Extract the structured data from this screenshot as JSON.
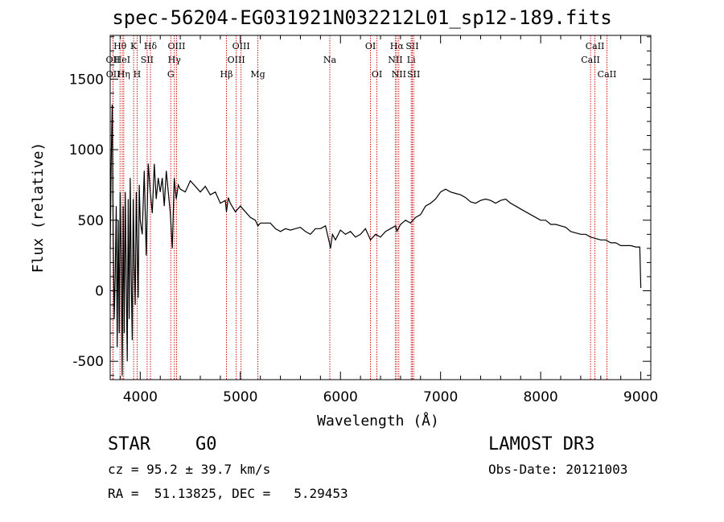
{
  "header": {
    "title": "spec-56204-EG031921N032212L01_sp12-189.fits"
  },
  "footer": {
    "class_label": "STAR",
    "subclass_label": "G0",
    "redshift_label": "cz = 95.2 ± 39.7 km/s",
    "coords_label": "RA =  51.13825, DEC =   5.29453",
    "survey_label": "LAMOST DR3",
    "obsdate_label": "Obs-Date: 20121003"
  },
  "colors": {
    "line_marker": "#cc0000",
    "spectrum": "#000000",
    "axes": "#000000"
  },
  "chart_data": {
    "type": "line",
    "title": "spec-56204-EG031921N032212L01_sp12-189.fits",
    "xlabel": "Wavelength (Å)",
    "ylabel": "Flux (relative)",
    "xlim": [
      3700,
      9100
    ],
    "ylim": [
      -630,
      1810
    ],
    "xticks": [
      4000,
      5000,
      6000,
      7000,
      8000,
      9000
    ],
    "yticks": [
      -500,
      0,
      500,
      1000,
      1500
    ],
    "series": [
      {
        "name": "flux",
        "x": [
          3700,
          3710,
          3720,
          3730,
          3740,
          3750,
          3760,
          3770,
          3780,
          3790,
          3800,
          3810,
          3820,
          3830,
          3840,
          3850,
          3860,
          3870,
          3880,
          3890,
          3900,
          3910,
          3920,
          3930,
          3940,
          3950,
          3960,
          3970,
          3980,
          3990,
          4000,
          4020,
          4040,
          4060,
          4080,
          4100,
          4120,
          4140,
          4160,
          4180,
          4200,
          4220,
          4240,
          4260,
          4280,
          4300,
          4320,
          4340,
          4360,
          4380,
          4400,
          4450,
          4500,
          4550,
          4600,
          4650,
          4700,
          4750,
          4800,
          4850,
          4861,
          4880,
          4900,
          4950,
          5000,
          5050,
          5100,
          5150,
          5175,
          5200,
          5250,
          5300,
          5350,
          5400,
          5450,
          5500,
          5550,
          5600,
          5650,
          5700,
          5750,
          5800,
          5850,
          5890,
          5900,
          5920,
          5950,
          6000,
          6050,
          6100,
          6150,
          6200,
          6250,
          6300,
          6350,
          6400,
          6450,
          6500,
          6550,
          6563,
          6600,
          6650,
          6700,
          6750,
          6800,
          6850,
          6900,
          6950,
          7000,
          7050,
          7100,
          7150,
          7200,
          7250,
          7300,
          7350,
          7400,
          7450,
          7500,
          7550,
          7600,
          7650,
          7700,
          7750,
          7800,
          7850,
          7900,
          7950,
          8000,
          8050,
          8100,
          8150,
          8200,
          8250,
          8300,
          8350,
          8400,
          8450,
          8500,
          8550,
          8600,
          8650,
          8700,
          8750,
          8800,
          8850,
          8900,
          8950,
          8990,
          9000
        ],
        "values": [
          300,
          900,
          1320,
          400,
          -200,
          100,
          600,
          -400,
          500,
          -300,
          700,
          200,
          -600,
          600,
          -300,
          700,
          100,
          -500,
          650,
          -200,
          800,
          100,
          -350,
          650,
          200,
          -100,
          700,
          300,
          -50,
          750,
          500,
          400,
          850,
          250,
          900,
          700,
          550,
          900,
          650,
          800,
          700,
          800,
          600,
          850,
          700,
          550,
          300,
          800,
          650,
          750,
          720,
          700,
          780,
          740,
          700,
          740,
          680,
          700,
          620,
          640,
          560,
          660,
          620,
          560,
          600,
          560,
          520,
          500,
          460,
          480,
          480,
          480,
          440,
          420,
          440,
          430,
          440,
          450,
          420,
          400,
          440,
          440,
          460,
          340,
          300,
          400,
          360,
          430,
          400,
          420,
          380,
          400,
          440,
          360,
          400,
          380,
          420,
          440,
          460,
          420,
          470,
          500,
          480,
          520,
          540,
          600,
          620,
          650,
          700,
          720,
          700,
          690,
          680,
          660,
          630,
          620,
          640,
          650,
          640,
          620,
          640,
          650,
          620,
          600,
          580,
          560,
          540,
          520,
          500,
          500,
          470,
          470,
          460,
          450,
          420,
          410,
          400,
          400,
          380,
          370,
          360,
          360,
          340,
          340,
          320,
          320,
          320,
          310,
          310,
          20
        ]
      }
    ],
    "line_markers": [
      {
        "label": "OII",
        "wavelength": 3727,
        "row": 2
      },
      {
        "label": "OII",
        "wavelength": 3729,
        "row": 3
      },
      {
        "label": "Hθ",
        "wavelength": 3798,
        "row": 1
      },
      {
        "label": "HeI",
        "wavelength": 3820,
        "row": 2
      },
      {
        "label": "Hη",
        "wavelength": 3835,
        "row": 3
      },
      {
        "label": "K",
        "wavelength": 3934,
        "row": 1
      },
      {
        "label": "SII",
        "wavelength": 4069,
        "row": 2
      },
      {
        "label": "H",
        "wavelength": 3969,
        "row": 3
      },
      {
        "label": "Hδ",
        "wavelength": 4102,
        "row": 1
      },
      {
        "label": "OIII",
        "wavelength": 4363,
        "row": 1
      },
      {
        "label": "Hγ",
        "wavelength": 4341,
        "row": 2
      },
      {
        "label": "G",
        "wavelength": 4305,
        "row": 3
      },
      {
        "label": "Hβ",
        "wavelength": 4861,
        "row": 3
      },
      {
        "label": "OIII",
        "wavelength": 5007,
        "row": 1
      },
      {
        "label": "OIII",
        "wavelength": 4959,
        "row": 2
      },
      {
        "label": "Mg",
        "wavelength": 5175,
        "row": 3
      },
      {
        "label": "Na",
        "wavelength": 5894,
        "row": 2
      },
      {
        "label": "OI",
        "wavelength": 6300,
        "row": 1
      },
      {
        "label": "OI",
        "wavelength": 6364,
        "row": 3
      },
      {
        "label": "Hα",
        "wavelength": 6563,
        "row": 1
      },
      {
        "label": "NII",
        "wavelength": 6548,
        "row": 2
      },
      {
        "label": "NII",
        "wavelength": 6583,
        "row": 3
      },
      {
        "label": "SII",
        "wavelength": 6717,
        "row": 1
      },
      {
        "label": "Li",
        "wavelength": 6707,
        "row": 2
      },
      {
        "label": "SII",
        "wavelength": 6731,
        "row": 3
      },
      {
        "label": "CaII",
        "wavelength": 8542,
        "row": 1
      },
      {
        "label": "CaII",
        "wavelength": 8498,
        "row": 2
      },
      {
        "label": "CaII",
        "wavelength": 8662,
        "row": 3
      }
    ]
  }
}
